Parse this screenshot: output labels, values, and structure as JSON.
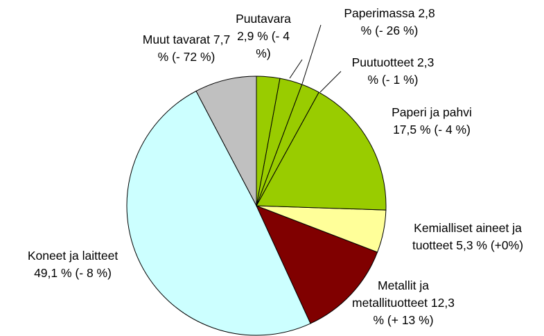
{
  "chart_data": {
    "type": "pie",
    "categories": [
      "Puutavara",
      "Paperimassa",
      "Puutuotteet",
      "Paperi ja pahvi",
      "Kemialliset aineet ja tuotteet",
      "Metallit ja metallituotteet",
      "Koneet ja laitteet",
      "Muut tavarat"
    ],
    "values": [
      2.9,
      2.8,
      2.3,
      17.5,
      5.3,
      12.3,
      49.1,
      7.7
    ],
    "value_labels": [
      "2,9 %",
      "2,8 %",
      "2,3 %",
      "17,5 %",
      "5,3 %",
      "12,3 %",
      "49,1 %",
      "7,7 %"
    ],
    "changes": [
      "(- 4 %)",
      "(- 26 %)",
      "(- 1 %)",
      "(- 4 %)",
      "(+0%)",
      "(+ 13 %)",
      "(- 8 %)",
      "(- 72 %)"
    ],
    "colors": [
      "#99cc00",
      "#99cc00",
      "#99cc00",
      "#99cc00",
      "#ffff99",
      "#800000",
      "#ccffff",
      "#c0c0c0"
    ]
  }
}
